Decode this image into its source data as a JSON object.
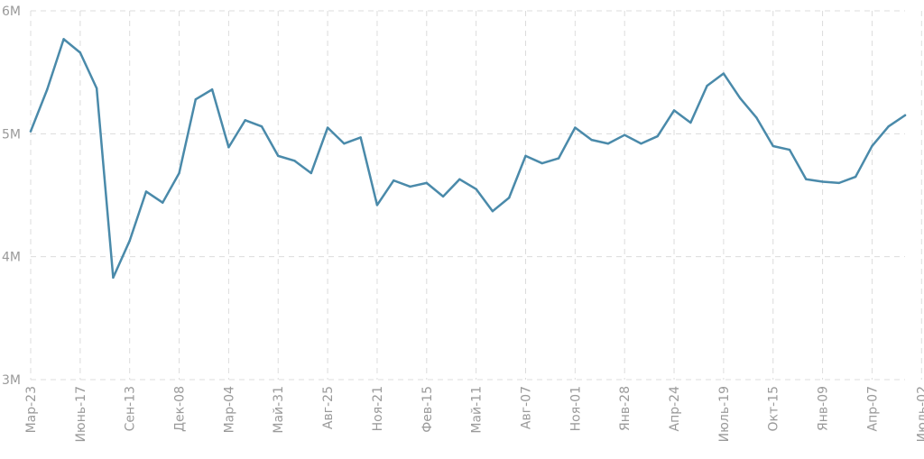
{
  "chart_data": {
    "type": "line",
    "title": "",
    "xlabel": "",
    "ylabel": "",
    "ylim": [
      3000000,
      6000000
    ],
    "y_ticks": [
      {
        "value": 3000000,
        "label": "3M"
      },
      {
        "value": 4000000,
        "label": "4M"
      },
      {
        "value": 5000000,
        "label": "5M"
      },
      {
        "value": 6000000,
        "label": "6M"
      }
    ],
    "x_tick_labels": [
      "Мар-23",
      "Июнь-17",
      "Сен-13",
      "Дек-08",
      "Мар-04",
      "Май-31",
      "Авг-25",
      "Ноя-21",
      "Фев-15",
      "Май-11",
      "Авг-07",
      "Ноя-01",
      "Янв-28",
      "Апр-24",
      "Июль-19",
      "Окт-15",
      "Янв-09",
      "Апр-07",
      "Июль-02"
    ],
    "grid": true,
    "line_color": "#4a8aaa",
    "series": [
      {
        "values": [
          5020000,
          5360000,
          5770000,
          5660000,
          5370000,
          3830000,
          4130000,
          4530000,
          4440000,
          4680000,
          5280000,
          5360000,
          4890000,
          5110000,
          5060000,
          4820000,
          4780000,
          4680000,
          5050000,
          4920000,
          4970000,
          4420000,
          4620000,
          4570000,
          4600000,
          4490000,
          4630000,
          4550000,
          4370000,
          4480000,
          4820000,
          4760000,
          4800000,
          5050000,
          4950000,
          4920000,
          4990000,
          4920000,
          4980000,
          5190000,
          5090000,
          5390000,
          5490000,
          5290000,
          5130000,
          4900000,
          4870000,
          4630000,
          4610000,
          4600000,
          4650000,
          4900000,
          5060000,
          5150000
        ]
      }
    ]
  }
}
